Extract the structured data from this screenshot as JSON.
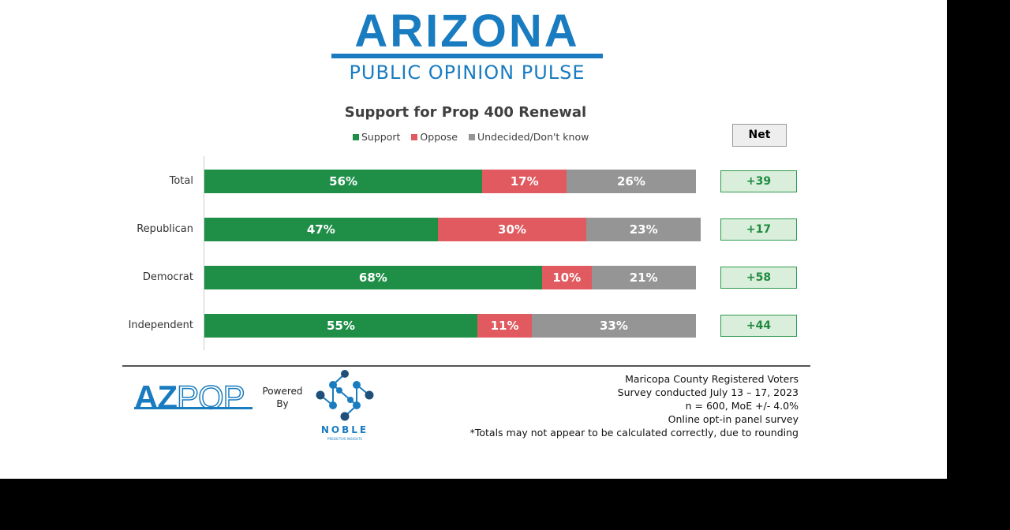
{
  "header": {
    "logo_title": "ARIZONA",
    "logo_subtitle": "PUBLIC OPINION PULSE"
  },
  "chart_data": {
    "type": "bar",
    "orientation": "horizontal",
    "stacked": true,
    "title": "Support for Prop 400 Renewal",
    "categories": [
      "Total",
      "Republican",
      "Democrat",
      "Independent"
    ],
    "series": [
      {
        "name": "Support",
        "color": "#1f8f48",
        "values": [
          56,
          47,
          68,
          55
        ],
        "labels": [
          "56%",
          "47%",
          "68%",
          "55%"
        ]
      },
      {
        "name": "Oppose",
        "color": "#e05a5f",
        "values": [
          17,
          30,
          10,
          11
        ],
        "labels": [
          "17%",
          "30%",
          "10%",
          "11%"
        ]
      },
      {
        "name": "Undecided/Don't know",
        "color": "#959595",
        "values": [
          26,
          23,
          21,
          33
        ],
        "labels": [
          "26%",
          "23%",
          "21%",
          "33%"
        ]
      }
    ],
    "legend_position": "top",
    "net_header": "Net",
    "net": [
      "+39",
      "+17",
      "+58",
      "+44"
    ]
  },
  "footer": {
    "azpop_a": "AZ",
    "azpop_b": "POP",
    "powered": "Powered",
    "by": "By",
    "noble": "NOBLE",
    "noble_sub": "PREDICTIVE INSIGHTS",
    "notes": [
      "Maricopa County Registered Voters",
      "Survey conducted July 13 – 17, 2023",
      "n = 600, MoE +/- 4.0%",
      "Online opt-in panel survey",
      "*Totals may not appear to be calculated correctly, due to rounding"
    ]
  }
}
